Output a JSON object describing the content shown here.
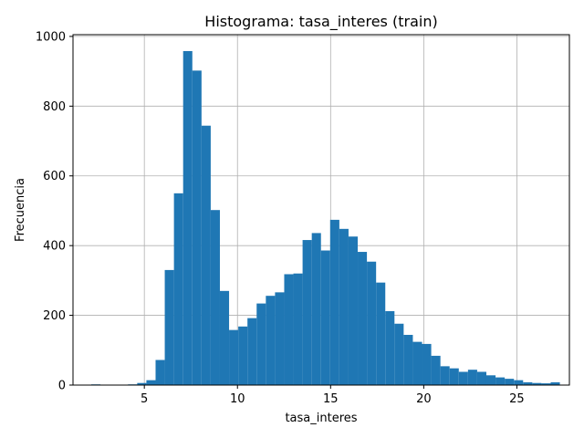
{
  "chart_data": {
    "type": "bar",
    "title": "Histograma: tasa_interes (train)",
    "xlabel": "tasa_interes",
    "ylabel": "Frecuencia",
    "xlim": [
      1.17,
      27.82
    ],
    "ylim": [
      0,
      1005
    ],
    "xticks": [
      5,
      10,
      15,
      20,
      25
    ],
    "yticks": [
      0,
      200,
      400,
      600,
      800,
      1000
    ],
    "grid": true,
    "bar_color": "#1f77b4",
    "bins": {
      "start": 2.15,
      "width": 0.4933,
      "counts": [
        2,
        0,
        0,
        1,
        2,
        6,
        14,
        72,
        330,
        550,
        958,
        902,
        744,
        502,
        270,
        158,
        168,
        192,
        234,
        256,
        266,
        318,
        320,
        416,
        436,
        386,
        474,
        448,
        426,
        382,
        354,
        294,
        212,
        176,
        144,
        124,
        118,
        84,
        54,
        48,
        38,
        44,
        38,
        28,
        22,
        18,
        14,
        8,
        6,
        5,
        8
      ]
    }
  }
}
